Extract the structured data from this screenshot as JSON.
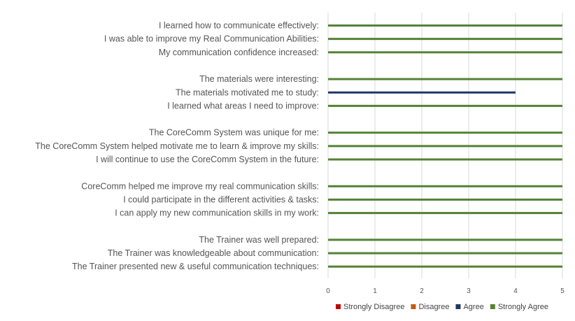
{
  "chart_data": {
    "type": "bar",
    "orientation": "horizontal",
    "stacked": true,
    "categories": [
      "I learned how to communicate effectively:",
      "I was able to improve my Real Communication Abilities:",
      "My communication confidence increased:",
      "",
      "The materials were interesting:",
      "The materials motivated me to study:",
      "I learned what areas I need to improve:",
      "",
      "The CoreComm System was unique for me:",
      "The CoreComm System helped motivate me to learn & improve my skills:",
      "I will continue to use the CoreComm System in the future:",
      "",
      "CoreComm helped me improve my real communication skills:",
      "I could participate in the different activities & tasks:",
      "I can apply my new communication skills in my work:",
      "",
      "The Trainer was well prepared:",
      "The Trainer was knowledgeable about communication:",
      "The Trainer presented new & useful communication techniques:"
    ],
    "series": [
      {
        "name": "Strongly Disagree",
        "color": "#c00000",
        "values": [
          0,
          0,
          0,
          null,
          0,
          0,
          0,
          null,
          0,
          0,
          0,
          null,
          0,
          0,
          0,
          null,
          0,
          0,
          0
        ]
      },
      {
        "name": "Disagree",
        "color": "#c55a11",
        "values": [
          0,
          0,
          0,
          null,
          0,
          0,
          0,
          null,
          0,
          0,
          0,
          null,
          0,
          0,
          0,
          null,
          0,
          0,
          0
        ]
      },
      {
        "name": "Agree",
        "color": "#1f3864",
        "values": [
          0,
          0,
          0,
          null,
          0,
          4,
          0,
          null,
          0,
          0,
          0,
          null,
          0,
          0,
          0,
          null,
          0,
          0,
          0
        ]
      },
      {
        "name": "Strongly Agree",
        "color": "#548235",
        "values": [
          5,
          5,
          5,
          null,
          5,
          0,
          5,
          null,
          5,
          5,
          5,
          null,
          5,
          5,
          5,
          null,
          5,
          5,
          5
        ]
      }
    ],
    "xlim": [
      0,
      5
    ],
    "xticks": [
      "0",
      "1",
      "2",
      "3",
      "4",
      "5"
    ],
    "grid": true,
    "legend_position": "bottom-right"
  }
}
